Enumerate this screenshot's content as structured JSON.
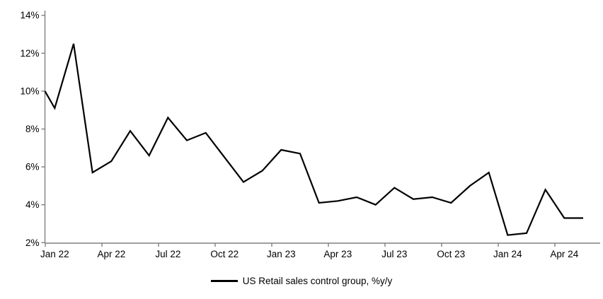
{
  "chart_data": {
    "type": "line",
    "x": [
      "Jan 22",
      "Feb 22",
      "Mar 22",
      "Apr 22",
      "May 22",
      "Jun 22",
      "Jul 22",
      "Aug 22",
      "Sep 22",
      "Oct 22",
      "Nov 22",
      "Dec 22",
      "Jan 23",
      "Feb 23",
      "Mar 23",
      "Apr 23",
      "May 23",
      "Jun 23",
      "Jul 23",
      "Aug 23",
      "Sep 23",
      "Oct 23",
      "Nov 23",
      "Dec 23",
      "Jan 24",
      "Feb 24",
      "Mar 24",
      "Apr 24",
      "May 24"
    ],
    "series": [
      {
        "name": "US Retail sales control group, %y/y",
        "values": [
          9.1,
          12.5,
          5.7,
          6.3,
          7.9,
          6.6,
          8.6,
          7.4,
          7.8,
          6.5,
          5.2,
          5.8,
          6.9,
          6.7,
          4.1,
          4.2,
          4.4,
          4.0,
          4.9,
          4.3,
          4.4,
          4.1,
          5.0,
          5.7,
          2.4,
          2.5,
          4.8,
          3.3,
          3.3
        ]
      }
    ],
    "left_edge_intercept": 10.0,
    "x_tick_labels": [
      "Jan 22",
      "Apr 22",
      "Jul 22",
      "Oct 22",
      "Jan 23",
      "Apr 23",
      "Jul 23",
      "Oct 23",
      "Jan 24",
      "Apr 24"
    ],
    "x_tick_every_n_months": 3,
    "y_tick_labels": [
      "2%",
      "4%",
      "6%",
      "8%",
      "10%",
      "12%",
      "14%"
    ],
    "ylim": [
      2,
      14
    ],
    "y_unit": "%",
    "grid": false,
    "legend_position": "bottom-center",
    "line_color": "#000000",
    "axis_color": "#808080",
    "text_color": "#000000"
  }
}
